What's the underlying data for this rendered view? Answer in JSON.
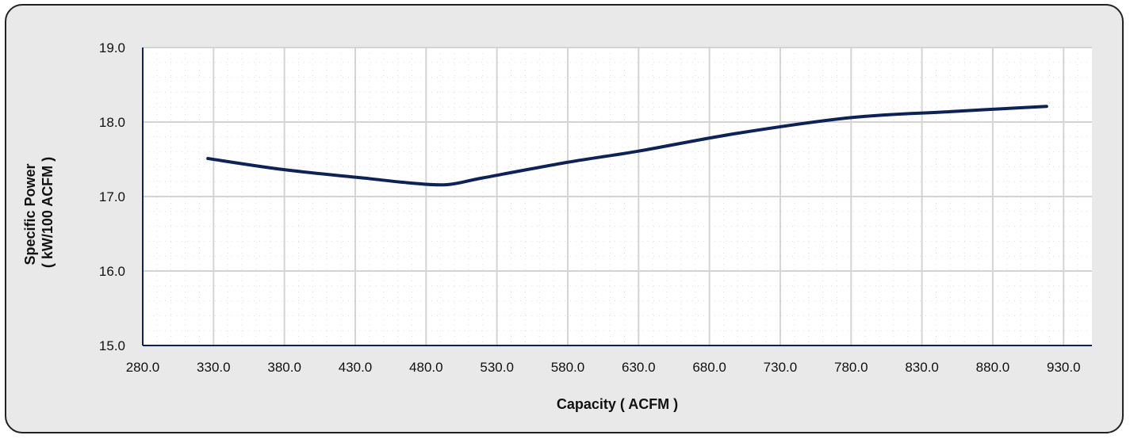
{
  "chart_data": {
    "type": "line",
    "title": "",
    "xlabel": "Capacity  ( ACFM )",
    "ylabel_lines": [
      "Specific  Power",
      "( kW/100 ACFM )"
    ],
    "xlim": [
      280,
      950
    ],
    "ylim": [
      15,
      19
    ],
    "x_ticks": [
      "280.0",
      "330.0",
      "380.0",
      "430.0",
      "480.0",
      "530.0",
      "580.0",
      "630.0",
      "680.0",
      "730.0",
      "780.0",
      "830.0",
      "880.0",
      "930.0"
    ],
    "y_ticks": [
      "15.0",
      "16.0",
      "17.0",
      "18.0",
      "19.0"
    ],
    "grid": true,
    "series": [
      {
        "color": "#0d2357",
        "points": [
          {
            "x": 326,
            "y": 17.51
          },
          {
            "x": 380,
            "y": 17.36
          },
          {
            "x": 440,
            "y": 17.24
          },
          {
            "x": 470,
            "y": 17.18
          },
          {
            "x": 495,
            "y": 17.16
          },
          {
            "x": 520,
            "y": 17.25
          },
          {
            "x": 580,
            "y": 17.46
          },
          {
            "x": 630,
            "y": 17.61
          },
          {
            "x": 700,
            "y": 17.85
          },
          {
            "x": 780,
            "y": 18.06
          },
          {
            "x": 850,
            "y": 18.14
          },
          {
            "x": 918,
            "y": 18.21
          }
        ]
      }
    ]
  },
  "colors": {
    "frame_background": "#e9e9e9",
    "plot_background": "#ffffff",
    "grid": "#d4d4d4",
    "axis": "#0d2357",
    "line": "#0d2357"
  }
}
